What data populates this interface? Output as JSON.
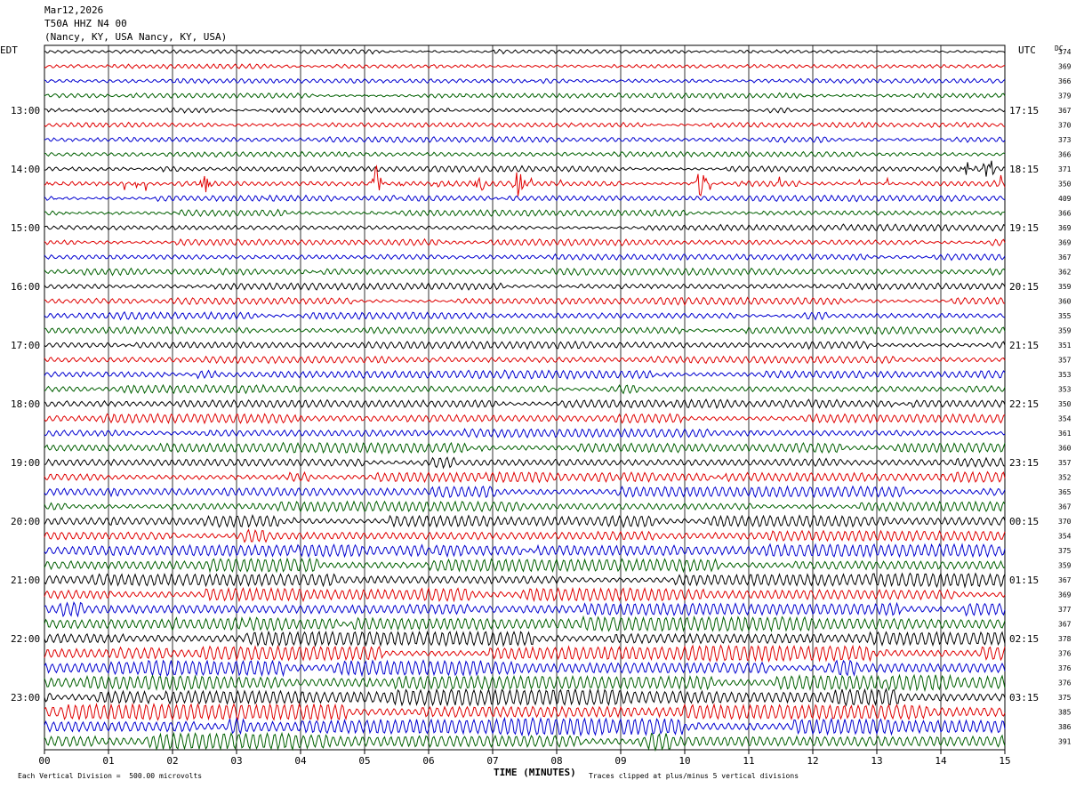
{
  "header": {
    "date": "Mar12,2026",
    "station": "T50A HHZ N4 00",
    "location": "(Nancy, KY, USA Nancy, KY, USA)"
  },
  "chart_data": {
    "type": "line",
    "title": "",
    "left_axis_label": "EDT",
    "right_axis_label": "UTC",
    "dc_label": "DC",
    "xlabel": "TIME (MINUTES)",
    "x_ticks": [
      "00",
      "01",
      "02",
      "03",
      "04",
      "05",
      "06",
      "07",
      "08",
      "09",
      "10",
      "11",
      "12",
      "13",
      "14",
      "15"
    ],
    "xlim": [
      0,
      15
    ],
    "rows_per_hour": 4,
    "left_hour_labels": [
      "13:00",
      "14:00",
      "15:00",
      "16:00",
      "17:00",
      "18:00",
      "19:00",
      "20:00",
      "21:00",
      "22:00",
      "23:00"
    ],
    "right_hour_labels": [
      "17:15",
      "18:15",
      "19:15",
      "20:15",
      "21:15",
      "22:15",
      "23:15",
      "00:15",
      "01:15",
      "02:15",
      "03:15"
    ],
    "first_labeled_row": 4,
    "dc_offsets": [
      374,
      369,
      366,
      379,
      367,
      370,
      373,
      366,
      371,
      350,
      409,
      366,
      369,
      369,
      367,
      362,
      359,
      360,
      355,
      359,
      351,
      357,
      353,
      353,
      350,
      354,
      361,
      360,
      357,
      352,
      365,
      367,
      370,
      354,
      375,
      359,
      367,
      369,
      377,
      367,
      378,
      376,
      376,
      376,
      375,
      385,
      386,
      391
    ],
    "trace_colors": [
      "#000000",
      "#e00000",
      "#0000d0",
      "#006000"
    ],
    "grid": "vertical lines at each minute",
    "footer_left": "Each Vertical Division =  500.00 microvolts",
    "footer_right": "Traces clipped at plus/minus 5 vertical divisions",
    "events": [
      {
        "row": 9,
        "minute": 2.5,
        "amp": 3
      },
      {
        "row": 9,
        "minute": 5.18,
        "amp": 5
      },
      {
        "row": 9,
        "minute": 7.4,
        "amp": 5
      },
      {
        "row": 9,
        "minute": 10.25,
        "amp": 4
      },
      {
        "row": 9,
        "minute": 6.8,
        "amp": 3
      },
      {
        "row": 8,
        "minute": 14.4,
        "amp": 2
      },
      {
        "row": 8,
        "minute": 14.75,
        "amp": 3
      }
    ]
  }
}
